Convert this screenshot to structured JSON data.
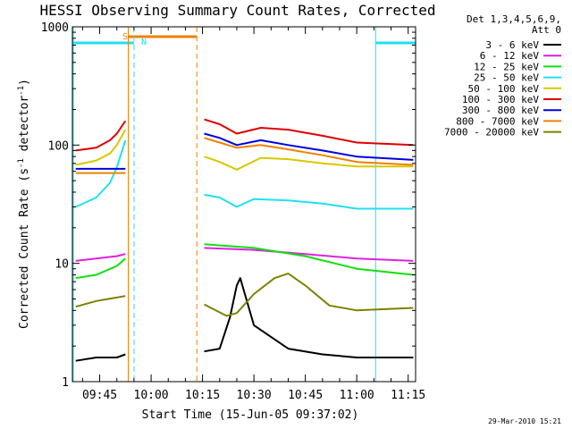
{
  "chart_data": {
    "type": "line",
    "title": "HESSI Observing Summary Count Rates, Corrected",
    "xlabel": "Start Time (15-Jun-05 09:37:02)",
    "ylabel": "Corrected Count Rate (s⁻¹ detector⁻¹)",
    "ylabel_parts": {
      "main": "Corrected Count Rate (s",
      "exp1": "-1",
      "mid": " detector",
      "exp2": "-1",
      "end": ")"
    },
    "footer": "29-Mar-2010 15:21",
    "y_scale": "log",
    "ylim": [
      1,
      1000
    ],
    "xlim": [
      "09:37:02",
      "11:17:10"
    ],
    "x_tick_labels": [
      "09:45",
      "10:00",
      "10:15",
      "10:30",
      "10:45",
      "11:00",
      "11:15"
    ],
    "y_tick_labels": [
      "1",
      "10",
      "100",
      "1000"
    ],
    "legend": {
      "title": [
        "Det 1,3,4,5,6,9,",
        "Att 0"
      ],
      "entries": [
        {
          "label": "3 - 6 keV",
          "color": "#000000"
        },
        {
          "label": "6 - 12 keV",
          "color": "#e020e0"
        },
        {
          "label": "12 - 25 keV",
          "color": "#10e010"
        },
        {
          "label": "25 - 50 keV",
          "color": "#20e0f0"
        },
        {
          "label": "50 - 100 keV",
          "color": "#d8c800"
        },
        {
          "label": "100 - 300 keV",
          "color": "#e00000"
        },
        {
          "label": "300 - 800 keV",
          "color": "#0000e0"
        },
        {
          "label": "800 - 7000 keV",
          "color": "#f08000"
        },
        {
          "label": "7000 - 20000 keV",
          "color": "#808000"
        }
      ]
    },
    "annotations": {
      "saa_label": "S",
      "night_label": "N",
      "saa_interval": [
        "09:53:20",
        "10:13:20"
      ],
      "night_intervals": [
        [
          "09:37:02",
          "09:55:00"
        ],
        [
          "11:05:30",
          "11:17:10"
        ]
      ],
      "saa_color": "#f08000",
      "night_color": "#20e0f0"
    },
    "series": [
      {
        "name": "3 - 6 keV",
        "segments": [
          {
            "x": [
              "09:38:00",
              "09:44:00",
              "09:50:00",
              "09:52:30"
            ],
            "y": [
              1.5,
              1.6,
              1.6,
              1.7
            ]
          },
          {
            "x": [
              "10:15:30",
              "10:20:00",
              "10:23:00",
              "10:25:00",
              "10:26:00",
              "10:30:00",
              "10:40:00",
              "10:50:00",
              "11:00:00",
              "11:10:00",
              "11:16:30"
            ],
            "y": [
              1.8,
              1.9,
              3.5,
              6.5,
              7.5,
              3.0,
              1.9,
              1.7,
              1.6,
              1.6,
              1.6
            ]
          }
        ]
      },
      {
        "name": "6 - 12 keV",
        "segments": [
          {
            "x": [
              "09:38:00",
              "09:44:00",
              "09:50:00",
              "09:52:30"
            ],
            "y": [
              10.5,
              11.0,
              11.5,
              12.0
            ]
          },
          {
            "x": [
              "10:15:30",
              "10:30:00",
              "10:45:00",
              "11:00:00",
              "11:16:30"
            ],
            "y": [
              13.5,
              13.0,
              12.0,
              11.0,
              10.5
            ]
          }
        ]
      },
      {
        "name": "12 - 25 keV",
        "segments": [
          {
            "x": [
              "09:38:00",
              "09:44:00",
              "09:50:00",
              "09:52:30"
            ],
            "y": [
              7.5,
              8.0,
              9.5,
              11.0
            ]
          },
          {
            "x": [
              "10:15:30",
              "10:30:00",
              "10:45:00",
              "11:00:00",
              "11:16:30"
            ],
            "y": [
              14.5,
              13.5,
              11.5,
              9.0,
              8.0
            ]
          }
        ]
      },
      {
        "name": "25 - 50 keV",
        "segments": [
          {
            "x": [
              "09:38:00",
              "09:44:00",
              "09:48:00",
              "09:50:00",
              "09:52:30"
            ],
            "y": [
              30,
              36,
              48,
              65,
              110
            ]
          },
          {
            "x": [
              "10:15:30",
              "10:20:00",
              "10:25:00",
              "10:30:00",
              "10:40:00",
              "10:50:00",
              "11:00:00",
              "11:16:30"
            ],
            "y": [
              38,
              36,
              30,
              35,
              34,
              32,
              29,
              29
            ]
          }
        ]
      },
      {
        "name": "50 - 100 keV",
        "segments": [
          {
            "x": [
              "09:38:00",
              "09:44:00",
              "09:48:00",
              "09:50:00",
              "09:52:30"
            ],
            "y": [
              68,
              74,
              85,
              100,
              135
            ]
          },
          {
            "x": [
              "10:15:30",
              "10:20:00",
              "10:25:00",
              "10:32:00",
              "10:40:00",
              "10:50:00",
              "11:00:00",
              "11:16:30"
            ],
            "y": [
              80,
              72,
              62,
              78,
              76,
              70,
              66,
              66
            ]
          }
        ]
      },
      {
        "name": "100 - 300 keV",
        "segments": [
          {
            "x": [
              "09:38:00",
              "09:44:00",
              "09:48:00",
              "09:50:00",
              "09:52:30"
            ],
            "y": [
              90,
              95,
              110,
              125,
              160
            ]
          },
          {
            "x": [
              "10:15:30",
              "10:20:00",
              "10:25:00",
              "10:32:00",
              "10:40:00",
              "10:50:00",
              "11:00:00",
              "11:16:30"
            ],
            "y": [
              165,
              150,
              125,
              140,
              135,
              120,
              105,
              100
            ]
          }
        ]
      },
      {
        "name": "300 - 800 keV",
        "segments": [
          {
            "x": [
              "09:38:00",
              "09:52:30"
            ],
            "y": [
              63,
              63
            ]
          },
          {
            "x": [
              "10:15:30",
              "10:20:00",
              "10:25:00",
              "10:32:00",
              "10:40:00",
              "10:50:00",
              "11:00:00",
              "11:16:30"
            ],
            "y": [
              125,
              115,
              100,
              110,
              100,
              90,
              80,
              75
            ]
          }
        ]
      },
      {
        "name": "800 - 7000 keV",
        "segments": [
          {
            "x": [
              "09:38:00",
              "09:52:30"
            ],
            "y": [
              58,
              58
            ]
          },
          {
            "x": [
              "10:15:30",
              "10:20:00",
              "10:25:00",
              "10:32:00",
              "10:40:00",
              "10:50:00",
              "11:00:00",
              "11:16:30"
            ],
            "y": [
              115,
              105,
              95,
              100,
              92,
              82,
              72,
              68
            ]
          }
        ]
      },
      {
        "name": "7000 - 20000 keV",
        "segments": [
          {
            "x": [
              "09:38:00",
              "09:44:00",
              "09:52:30"
            ],
            "y": [
              4.3,
              4.8,
              5.3
            ]
          },
          {
            "x": [
              "10:15:30",
              "10:22:00",
              "10:25:00",
              "10:30:00",
              "10:36:00",
              "10:40:00",
              "10:45:00",
              "10:52:00",
              "11:00:00",
              "11:16:30"
            ],
            "y": [
              4.5,
              3.6,
              3.8,
              5.5,
              7.5,
              8.2,
              6.5,
              4.4,
              4.0,
              4.2
            ]
          }
        ]
      }
    ]
  }
}
